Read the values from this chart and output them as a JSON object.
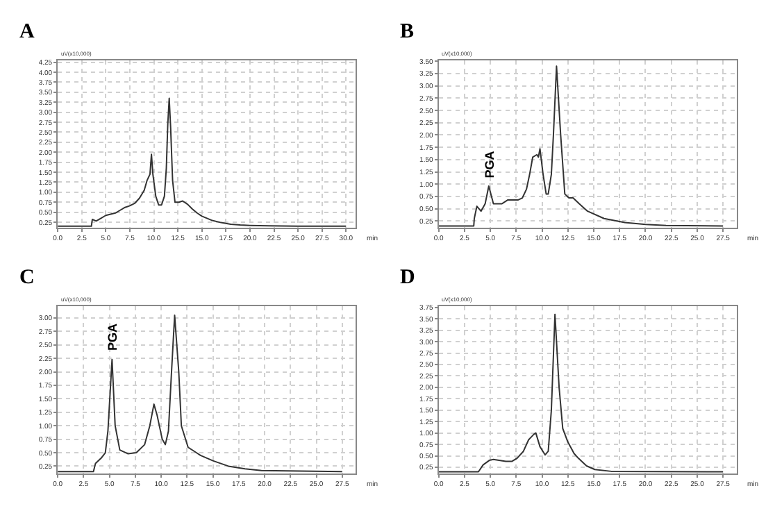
{
  "chart_data": [
    {
      "type": "line",
      "title": "A",
      "ylabel": "uV(x10,000)",
      "xlabel": "min",
      "grid": true,
      "marker": "none",
      "line_style": "solid",
      "xlim": [
        0,
        31
      ],
      "ylim": [
        0.12,
        4.3
      ],
      "xticks": [
        {
          "value": 0,
          "label": "0.0"
        },
        {
          "value": 2.5,
          "label": "2.5"
        },
        {
          "value": 5,
          "label": "5.0"
        },
        {
          "value": 7.5,
          "label": "7.5"
        },
        {
          "value": 10,
          "label": "10.0"
        },
        {
          "value": 12.5,
          "label": "12.5"
        },
        {
          "value": 15,
          "label": "15.0"
        },
        {
          "value": 17.5,
          "label": "17.5"
        },
        {
          "value": 20,
          "label": "20.0"
        },
        {
          "value": 22.5,
          "label": "22.5"
        },
        {
          "value": 25,
          "label": "25.0"
        },
        {
          "value": 27.5,
          "label": "27.5"
        },
        {
          "value": 30,
          "label": "30.0"
        }
      ],
      "yticks": [
        0.25,
        {
          "value": 0.5,
          "label": "0.50"
        },
        0.75,
        {
          "value": 1,
          "label": "1.00"
        },
        1.25,
        {
          "value": 1.5,
          "label": "1.50"
        },
        1.75,
        {
          "value": 2,
          "label": "2.00"
        },
        2.25,
        {
          "value": 2.5,
          "label": "2.50"
        },
        2.75,
        {
          "value": 3,
          "label": "3.00"
        },
        3.25,
        {
          "value": 3.5,
          "label": "3.50"
        },
        3.75,
        {
          "value": 4,
          "label": "4.00"
        },
        4.25
      ],
      "series": [
        {
          "color": "#333333",
          "x": [
            0,
            3.5,
            3.6,
            4,
            4.5,
            5,
            5.5,
            6,
            6.5,
            7,
            7.5,
            8,
            8.5,
            9,
            9.3,
            9.6,
            9.75,
            9.9,
            10.2,
            10.5,
            10.8,
            11.1,
            11.3,
            11.45,
            11.6,
            11.75,
            11.95,
            12.2,
            12.6,
            13,
            13.5,
            14,
            14.5,
            15,
            16,
            17,
            18,
            19,
            20,
            22,
            25,
            30
          ],
          "values": [
            0.15,
            0.15,
            0.32,
            0.28,
            0.35,
            0.42,
            0.45,
            0.48,
            0.55,
            0.62,
            0.66,
            0.72,
            0.85,
            1.05,
            1.3,
            1.45,
            1.95,
            1.45,
            0.9,
            0.68,
            0.68,
            0.9,
            1.6,
            2.7,
            3.35,
            2.6,
            1.3,
            0.75,
            0.75,
            0.78,
            0.7,
            0.58,
            0.48,
            0.4,
            0.3,
            0.24,
            0.2,
            0.18,
            0.17,
            0.16,
            0.15,
            0.15
          ]
        }
      ]
    },
    {
      "type": "line",
      "title": "B",
      "ylabel": "uV(x10,000)",
      "xlabel": "min",
      "grid": true,
      "marker": "none",
      "line_style": "solid",
      "xlim": [
        0,
        28.8
      ],
      "ylim": [
        0.12,
        3.52
      ],
      "xticks": [
        {
          "value": 0,
          "label": "0.0"
        },
        {
          "value": 2.5,
          "label": "2.5"
        },
        {
          "value": 5,
          "label": "5.0"
        },
        {
          "value": 7.5,
          "label": "7.5"
        },
        {
          "value": 10,
          "label": "10.0"
        },
        {
          "value": 12.5,
          "label": "12.5"
        },
        {
          "value": 15,
          "label": "15.0"
        },
        {
          "value": 17.5,
          "label": "17.5"
        },
        {
          "value": 20,
          "label": "20.0"
        },
        {
          "value": 22.5,
          "label": "22.5"
        },
        {
          "value": 25,
          "label": "25.0"
        },
        {
          "value": 27.5,
          "label": "27.5"
        }
      ],
      "yticks": [
        0.25,
        {
          "value": 0.5,
          "label": "0.50"
        },
        0.75,
        {
          "value": 1,
          "label": "1.00"
        },
        1.25,
        {
          "value": 1.5,
          "label": "1.50"
        },
        1.75,
        {
          "value": 2,
          "label": "2.00"
        },
        2.25,
        {
          "value": 2.5,
          "label": "2.50"
        },
        2.75,
        {
          "value": 3,
          "label": "3.00"
        },
        3.25,
        {
          "value": 3.5,
          "label": "3.50"
        }
      ],
      "annotations": [
        {
          "text": "PGA",
          "x": 4.9,
          "y": 0.96
        }
      ],
      "series": [
        {
          "color": "#333333",
          "x": [
            0,
            3.4,
            3.45,
            3.7,
            4.1,
            4.5,
            4.85,
            5.3,
            6.1,
            6.7,
            7.7,
            8.1,
            8.5,
            8.8,
            9.1,
            9.5,
            9.65,
            9.8,
            10.1,
            10.4,
            10.6,
            10.9,
            11.1,
            11.4,
            11.8,
            12.2,
            12.6,
            13,
            13.6,
            14.4,
            16,
            18,
            20,
            22,
            27.5
          ],
          "values": [
            0.15,
            0.15,
            0.3,
            0.55,
            0.45,
            0.6,
            0.96,
            0.6,
            0.6,
            0.68,
            0.68,
            0.72,
            0.9,
            1.2,
            1.55,
            1.6,
            1.55,
            1.72,
            1.2,
            0.8,
            0.8,
            1.2,
            2.0,
            3.4,
            2.0,
            0.8,
            0.72,
            0.72,
            0.6,
            0.45,
            0.3,
            0.22,
            0.18,
            0.16,
            0.15
          ]
        }
      ]
    },
    {
      "type": "line",
      "title": "C",
      "ylabel": "uV(x10,000)",
      "xlabel": "min",
      "grid": true,
      "marker": "none",
      "line_style": "solid",
      "xlim": [
        0,
        28.8
      ],
      "ylim": [
        0.12,
        3.22
      ],
      "xticks": [
        {
          "value": 0,
          "label": "0.0"
        },
        {
          "value": 2.5,
          "label": "2.5"
        },
        {
          "value": 5,
          "label": "5.0"
        },
        {
          "value": 7.5,
          "label": "7.5"
        },
        {
          "value": 10,
          "label": "10.0"
        },
        {
          "value": 12.5,
          "label": "12.5"
        },
        {
          "value": 15,
          "label": "15.0"
        },
        {
          "value": 17.5,
          "label": "17.5"
        },
        {
          "value": 20,
          "label": "20.0"
        },
        {
          "value": 22.5,
          "label": "22.5"
        },
        {
          "value": 25,
          "label": "25.0"
        },
        {
          "value": 27.5,
          "label": "27.5"
        }
      ],
      "yticks": [
        0.25,
        {
          "value": 0.5,
          "label": "0.50"
        },
        0.75,
        {
          "value": 1,
          "label": "1.00"
        },
        1.25,
        {
          "value": 1.5,
          "label": "1.50"
        },
        1.75,
        {
          "value": 2,
          "label": "2.00"
        },
        2.25,
        {
          "value": 2.5,
          "label": "2.50"
        },
        2.75,
        {
          "value": 3,
          "label": "3.00"
        }
      ],
      "annotations": [
        {
          "text": "PGA",
          "x": 5.25,
          "y": 2.23
        }
      ],
      "series": [
        {
          "color": "#333333",
          "x": [
            0,
            3.45,
            3.65,
            4.2,
            4.6,
            4.85,
            5.25,
            5.55,
            6,
            6.8,
            7.6,
            8.4,
            8.9,
            9.3,
            9.6,
            10.1,
            10.4,
            10.7,
            11,
            11.3,
            11.7,
            11.95,
            12.6,
            13.4,
            13.8,
            15,
            16.5,
            18.1,
            19.7,
            27.5
          ],
          "values": [
            0.15,
            0.15,
            0.3,
            0.4,
            0.5,
            0.9,
            2.23,
            1.0,
            0.55,
            0.48,
            0.5,
            0.65,
            1.0,
            1.4,
            1.2,
            0.75,
            0.65,
            0.9,
            2.0,
            3.05,
            2.0,
            1.0,
            0.6,
            0.5,
            0.45,
            0.35,
            0.25,
            0.2,
            0.17,
            0.15
          ]
        }
      ]
    },
    {
      "type": "line",
      "title": "D",
      "ylabel": "uV(x10,000)",
      "xlabel": "min",
      "grid": true,
      "marker": "none",
      "line_style": "solid",
      "xlim": [
        0,
        28.8
      ],
      "ylim": [
        0.12,
        3.78
      ],
      "xticks": [
        {
          "value": 0,
          "label": "0.0"
        },
        {
          "value": 2.5,
          "label": "2.5"
        },
        {
          "value": 5,
          "label": "5.0"
        },
        {
          "value": 7.5,
          "label": "7.5"
        },
        {
          "value": 10,
          "label": "10.0"
        },
        {
          "value": 12.5,
          "label": "12.5"
        },
        {
          "value": 15,
          "label": "15.0"
        },
        {
          "value": 17.5,
          "label": "17.5"
        },
        {
          "value": 20,
          "label": "20.0"
        },
        {
          "value": 22.5,
          "label": "22.5"
        },
        {
          "value": 25,
          "label": "25.0"
        },
        {
          "value": 27.5,
          "label": "27.5"
        }
      ],
      "yticks": [
        0.25,
        {
          "value": 0.5,
          "label": "0.50"
        },
        0.75,
        {
          "value": 1,
          "label": "1.00"
        },
        1.25,
        {
          "value": 1.5,
          "label": "1.50"
        },
        1.75,
        {
          "value": 2,
          "label": "2.00"
        },
        2.25,
        {
          "value": 2.5,
          "label": "2.50"
        },
        2.75,
        {
          "value": 3,
          "label": "3.00"
        },
        3.25,
        {
          "value": 3.5,
          "label": "3.50"
        },
        3.75
      ],
      "series": [
        {
          "color": "#333333",
          "x": [
            0,
            3.85,
            4.3,
            4.9,
            5.3,
            6.5,
            7.1,
            7.6,
            8.2,
            8.7,
            9.2,
            9.4,
            9.8,
            10.3,
            10.6,
            10.9,
            11.25,
            11.65,
            12,
            12.5,
            13.1,
            13.5,
            14.3,
            15.1,
            16.7,
            27.5
          ],
          "values": [
            0.15,
            0.15,
            0.3,
            0.4,
            0.42,
            0.38,
            0.38,
            0.45,
            0.6,
            0.85,
            0.97,
            1.0,
            0.7,
            0.52,
            0.6,
            1.5,
            3.6,
            2.0,
            1.1,
            0.8,
            0.55,
            0.45,
            0.28,
            0.2,
            0.16,
            0.15
          ]
        }
      ]
    }
  ]
}
